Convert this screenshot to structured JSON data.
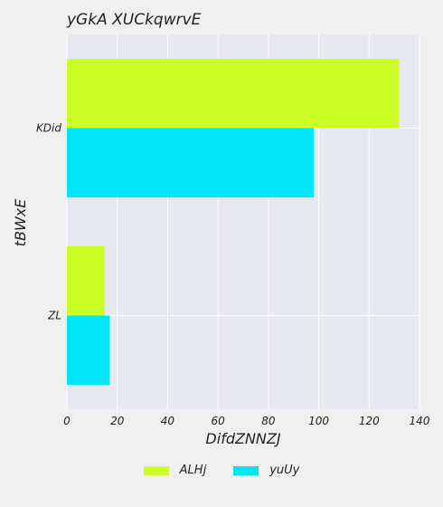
{
  "chart_data": {
    "type": "bar",
    "orientation": "horizontal",
    "title": "yGkA XUCkqwrvE",
    "xlabel": "DifdZNNZJ",
    "ylabel": "tBWxE",
    "categories": [
      "ZL",
      "KDid"
    ],
    "series": [
      {
        "name": "ALHj",
        "values": [
          15,
          132
        ],
        "color": "#ccff27"
      },
      {
        "name": "yuUy",
        "values": [
          17,
          98
        ],
        "color": "#00e5f7"
      }
    ],
    "xlim": [
      0,
      140
    ],
    "xticks": [
      0,
      20,
      40,
      60,
      80,
      100,
      120,
      140
    ],
    "grid": true,
    "legend_position": "bottom-center",
    "background": "#f0f0f0",
    "plot_background": "#e8e8f0"
  }
}
